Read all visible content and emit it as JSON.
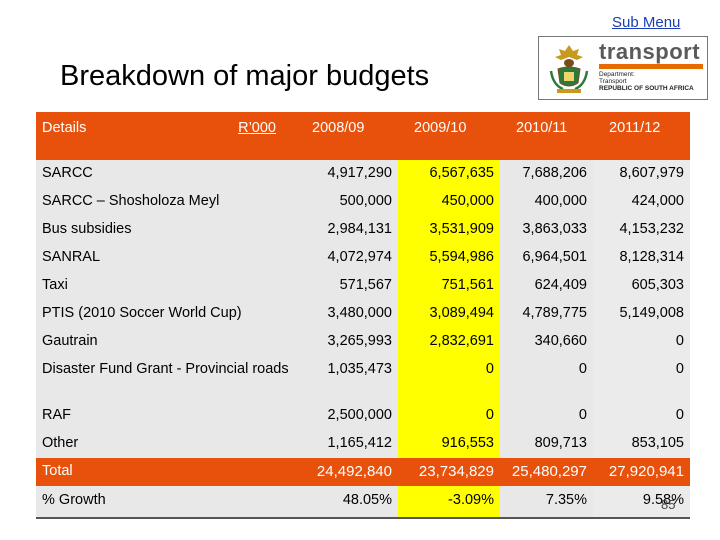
{
  "nav": {
    "sub_menu": "Sub Menu"
  },
  "page": {
    "title": "Breakdown of major budgets",
    "page_number": "85"
  },
  "logo": {
    "word": "transport",
    "dept_line1": "Department:",
    "dept_line2": "Transport",
    "dept_line3": "REPUBLIC OF SOUTH AFRICA"
  },
  "table": {
    "header": {
      "details": "Details",
      "unit": "R’000",
      "y1": "2008/09",
      "y2": "2009/10",
      "y3": "2010/11",
      "y4": "2011/12"
    },
    "rows": [
      {
        "label": "SARCC",
        "v": [
          "4,917,290",
          "6,567,635",
          "7,688,206",
          "8,607,979"
        ]
      },
      {
        "label": "SARCC – Shosholoza Meyl",
        "v": [
          "500,000",
          "450,000",
          "400,000",
          "424,000"
        ]
      },
      {
        "label": "Bus subsidies",
        "v": [
          "2,984,131",
          "3,531,909",
          "3,863,033",
          "4,153,232"
        ]
      },
      {
        "label": "SANRAL",
        "v": [
          "4,072,974",
          "5,594,986",
          "6,964,501",
          "8,128,314"
        ]
      },
      {
        "label": "Taxi",
        "v": [
          "571,567",
          "751,561",
          "624,409",
          "605,303"
        ]
      },
      {
        "label": "PTIS (2010 Soccer World Cup)",
        "v": [
          "3,480,000",
          "3,089,494",
          "4,789,775",
          "5,149,008"
        ]
      },
      {
        "label": "Gautrain",
        "v": [
          "3,265,993",
          "2,832,691",
          "340,660",
          "0"
        ]
      },
      {
        "label": "Disaster Fund Grant - Provincial roads",
        "v": [
          "1,035,473",
          "0",
          "0",
          "0"
        ]
      },
      {
        "label": "RAF",
        "v": [
          "2,500,000",
          "0",
          "0",
          "0"
        ]
      },
      {
        "label": "Other",
        "v": [
          "1,165,412",
          "916,553",
          "809,713",
          "853,105"
        ]
      }
    ],
    "total": {
      "label": "Total",
      "v": [
        "24,492,840",
        "23,734,829",
        "25,480,297",
        "27,920,941"
      ]
    },
    "growth": {
      "label": "% Growth",
      "v": [
        "48.05%",
        "-3.09%",
        "7.35%",
        "9.58%"
      ]
    }
  }
}
